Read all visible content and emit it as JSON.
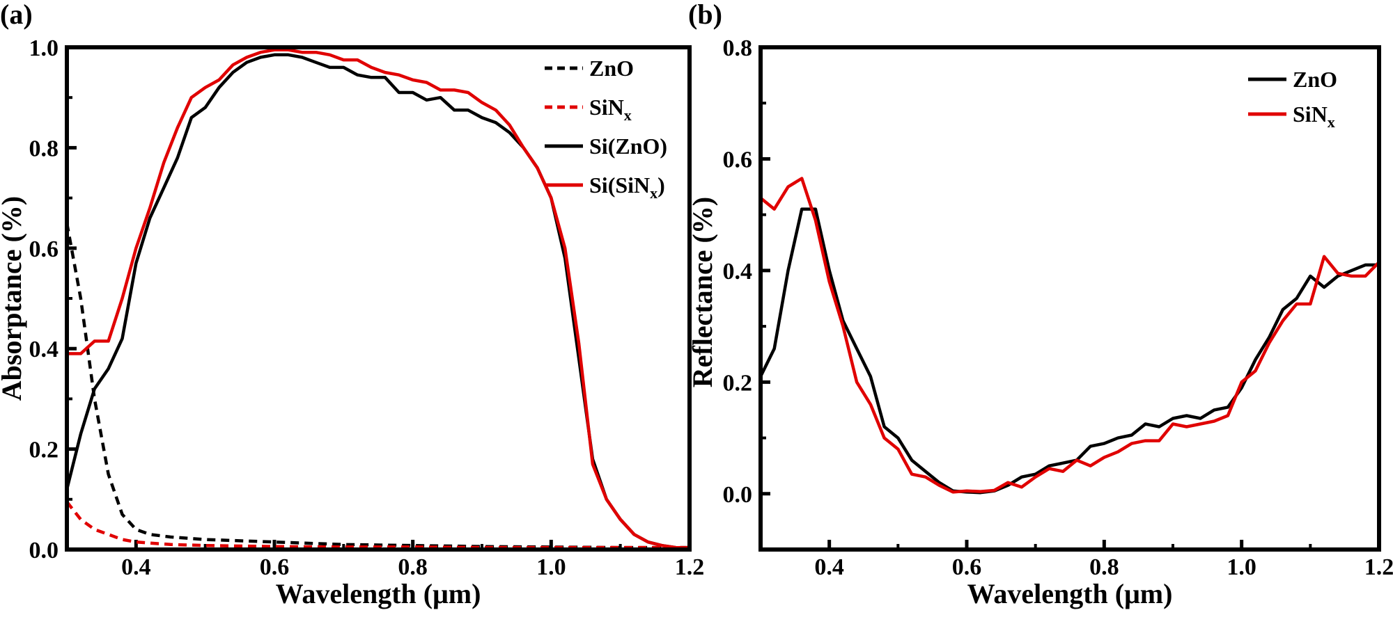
{
  "chart_data": [
    {
      "type": "line",
      "panel_label": "(a)",
      "xlabel": "Wavelength (μm)",
      "ylabel": "Absorptance (%)",
      "xlim": [
        0.3,
        1.2
      ],
      "ylim": [
        0.0,
        1.0
      ],
      "xticks": [
        0.4,
        0.6,
        0.8,
        1.0,
        1.2
      ],
      "xtick_labels": [
        "0.4",
        "0.6",
        "0.8",
        "1.0",
        "1.2"
      ],
      "yticks": [
        0.0,
        0.2,
        0.4,
        0.6,
        0.8,
        1.0
      ],
      "ytick_labels": [
        "0.0",
        "0.2",
        "0.4",
        "0.6",
        "0.8",
        "1.0"
      ],
      "legend_position": "top-right",
      "series": [
        {
          "name": "ZnO",
          "legend_main": "ZnO",
          "legend_sub": "",
          "legend_suffix": "",
          "color": "#000000",
          "dashed": true,
          "x": [
            0.3,
            0.32,
            0.34,
            0.36,
            0.38,
            0.4,
            0.42,
            0.45,
            0.5,
            0.6,
            0.7,
            0.8,
            0.9,
            1.0,
            1.1,
            1.2
          ],
          "y": [
            0.65,
            0.5,
            0.3,
            0.15,
            0.07,
            0.04,
            0.03,
            0.025,
            0.02,
            0.015,
            0.01,
            0.008,
            0.006,
            0.005,
            0.004,
            0.004
          ]
        },
        {
          "name": "SiNx",
          "legend_main": "SiN",
          "legend_sub": "x",
          "legend_suffix": "",
          "color": "#e00000",
          "dashed": true,
          "x": [
            0.3,
            0.32,
            0.34,
            0.36,
            0.38,
            0.4,
            0.45,
            0.5,
            0.6,
            0.7,
            0.8,
            0.9,
            1.0,
            1.1,
            1.2
          ],
          "y": [
            0.095,
            0.06,
            0.04,
            0.03,
            0.02,
            0.015,
            0.01,
            0.008,
            0.006,
            0.005,
            0.005,
            0.004,
            0.004,
            0.004,
            0.004
          ]
        },
        {
          "name": "Si(ZnO)",
          "legend_main": "Si(ZnO)",
          "legend_sub": "",
          "legend_suffix": "",
          "color": "#000000",
          "dashed": false,
          "x": [
            0.3,
            0.32,
            0.34,
            0.36,
            0.38,
            0.4,
            0.42,
            0.44,
            0.46,
            0.48,
            0.5,
            0.52,
            0.54,
            0.56,
            0.58,
            0.6,
            0.62,
            0.64,
            0.66,
            0.68,
            0.7,
            0.72,
            0.74,
            0.76,
            0.78,
            0.8,
            0.82,
            0.84,
            0.86,
            0.88,
            0.9,
            0.92,
            0.94,
            0.96,
            0.98,
            1.0,
            1.02,
            1.04,
            1.06,
            1.08,
            1.1,
            1.12,
            1.14,
            1.16,
            1.18,
            1.2
          ],
          "y": [
            0.12,
            0.23,
            0.32,
            0.36,
            0.42,
            0.57,
            0.66,
            0.72,
            0.78,
            0.86,
            0.88,
            0.92,
            0.95,
            0.97,
            0.98,
            0.985,
            0.985,
            0.98,
            0.97,
            0.96,
            0.96,
            0.945,
            0.94,
            0.94,
            0.91,
            0.91,
            0.895,
            0.9,
            0.875,
            0.875,
            0.86,
            0.85,
            0.83,
            0.8,
            0.76,
            0.7,
            0.58,
            0.38,
            0.18,
            0.1,
            0.06,
            0.03,
            0.015,
            0.008,
            0.004,
            0.003
          ]
        },
        {
          "name": "Si(SiNx)",
          "legend_main": "Si(SiN",
          "legend_sub": "x",
          "legend_suffix": ")",
          "color": "#e00000",
          "dashed": false,
          "x": [
            0.3,
            0.32,
            0.34,
            0.36,
            0.38,
            0.4,
            0.42,
            0.44,
            0.46,
            0.48,
            0.5,
            0.52,
            0.54,
            0.56,
            0.58,
            0.6,
            0.62,
            0.64,
            0.66,
            0.68,
            0.7,
            0.72,
            0.74,
            0.76,
            0.78,
            0.8,
            0.82,
            0.84,
            0.86,
            0.88,
            0.9,
            0.92,
            0.94,
            0.96,
            0.98,
            1.0,
            1.02,
            1.04,
            1.06,
            1.08,
            1.1,
            1.12,
            1.14,
            1.16,
            1.18,
            1.2
          ],
          "y": [
            0.39,
            0.39,
            0.415,
            0.415,
            0.5,
            0.6,
            0.68,
            0.77,
            0.84,
            0.9,
            0.92,
            0.935,
            0.965,
            0.98,
            0.99,
            0.995,
            0.995,
            0.99,
            0.99,
            0.985,
            0.975,
            0.975,
            0.96,
            0.95,
            0.945,
            0.935,
            0.93,
            0.915,
            0.915,
            0.91,
            0.89,
            0.875,
            0.845,
            0.8,
            0.76,
            0.7,
            0.6,
            0.41,
            0.17,
            0.1,
            0.06,
            0.03,
            0.015,
            0.008,
            0.004,
            0.003
          ]
        }
      ]
    },
    {
      "type": "line",
      "panel_label": "(b)",
      "xlabel": "Wavelength (μm)",
      "ylabel": "Reflectance (%)",
      "xlim": [
        0.3,
        1.2
      ],
      "ylim": [
        -0.1,
        0.8
      ],
      "xticks": [
        0.4,
        0.6,
        0.8,
        1.0,
        1.2
      ],
      "xtick_labels": [
        "0.4",
        "0.6",
        "0.8",
        "1.0",
        "1.2"
      ],
      "yticks": [
        0.0,
        0.2,
        0.4,
        0.6,
        0.8
      ],
      "ytick_labels": [
        "0.0",
        "0.2",
        "0.4",
        "0.6",
        "0.8"
      ],
      "legend_position": "top-right",
      "series": [
        {
          "name": "ZnO",
          "legend_main": "ZnO",
          "legend_sub": "",
          "legend_suffix": "",
          "color": "#000000",
          "dashed": false,
          "x": [
            0.3,
            0.32,
            0.34,
            0.36,
            0.38,
            0.4,
            0.42,
            0.44,
            0.46,
            0.48,
            0.5,
            0.52,
            0.54,
            0.56,
            0.58,
            0.6,
            0.62,
            0.64,
            0.66,
            0.68,
            0.7,
            0.72,
            0.74,
            0.76,
            0.78,
            0.8,
            0.82,
            0.84,
            0.86,
            0.88,
            0.9,
            0.92,
            0.94,
            0.96,
            0.98,
            1.0,
            1.02,
            1.04,
            1.06,
            1.08,
            1.1,
            1.12,
            1.14,
            1.16,
            1.18,
            1.2
          ],
          "y": [
            0.21,
            0.26,
            0.4,
            0.51,
            0.51,
            0.4,
            0.31,
            0.26,
            0.21,
            0.12,
            0.1,
            0.06,
            0.04,
            0.02,
            0.005,
            0.003,
            0.002,
            0.005,
            0.015,
            0.03,
            0.035,
            0.05,
            0.055,
            0.06,
            0.085,
            0.09,
            0.1,
            0.105,
            0.125,
            0.12,
            0.135,
            0.14,
            0.135,
            0.15,
            0.155,
            0.19,
            0.24,
            0.28,
            0.33,
            0.35,
            0.39,
            0.37,
            0.39,
            0.4,
            0.41,
            0.41
          ]
        },
        {
          "name": "SiNx",
          "legend_main": "SiN",
          "legend_sub": "x",
          "legend_suffix": "",
          "color": "#e00000",
          "dashed": false,
          "x": [
            0.3,
            0.32,
            0.34,
            0.36,
            0.38,
            0.4,
            0.42,
            0.44,
            0.46,
            0.48,
            0.5,
            0.52,
            0.54,
            0.56,
            0.58,
            0.6,
            0.62,
            0.64,
            0.66,
            0.68,
            0.7,
            0.72,
            0.74,
            0.76,
            0.78,
            0.8,
            0.82,
            0.84,
            0.86,
            0.88,
            0.9,
            0.92,
            0.94,
            0.96,
            0.98,
            1.0,
            1.02,
            1.04,
            1.06,
            1.08,
            1.1,
            1.12,
            1.14,
            1.16,
            1.18,
            1.2
          ],
          "y": [
            0.53,
            0.51,
            0.55,
            0.565,
            0.49,
            0.38,
            0.3,
            0.2,
            0.16,
            0.1,
            0.08,
            0.035,
            0.03,
            0.015,
            0.003,
            0.005,
            0.004,
            0.006,
            0.02,
            0.012,
            0.03,
            0.045,
            0.04,
            0.06,
            0.05,
            0.065,
            0.075,
            0.09,
            0.095,
            0.095,
            0.125,
            0.12,
            0.125,
            0.13,
            0.14,
            0.2,
            0.22,
            0.27,
            0.31,
            0.34,
            0.34,
            0.425,
            0.395,
            0.39,
            0.39,
            0.415
          ]
        }
      ]
    }
  ]
}
